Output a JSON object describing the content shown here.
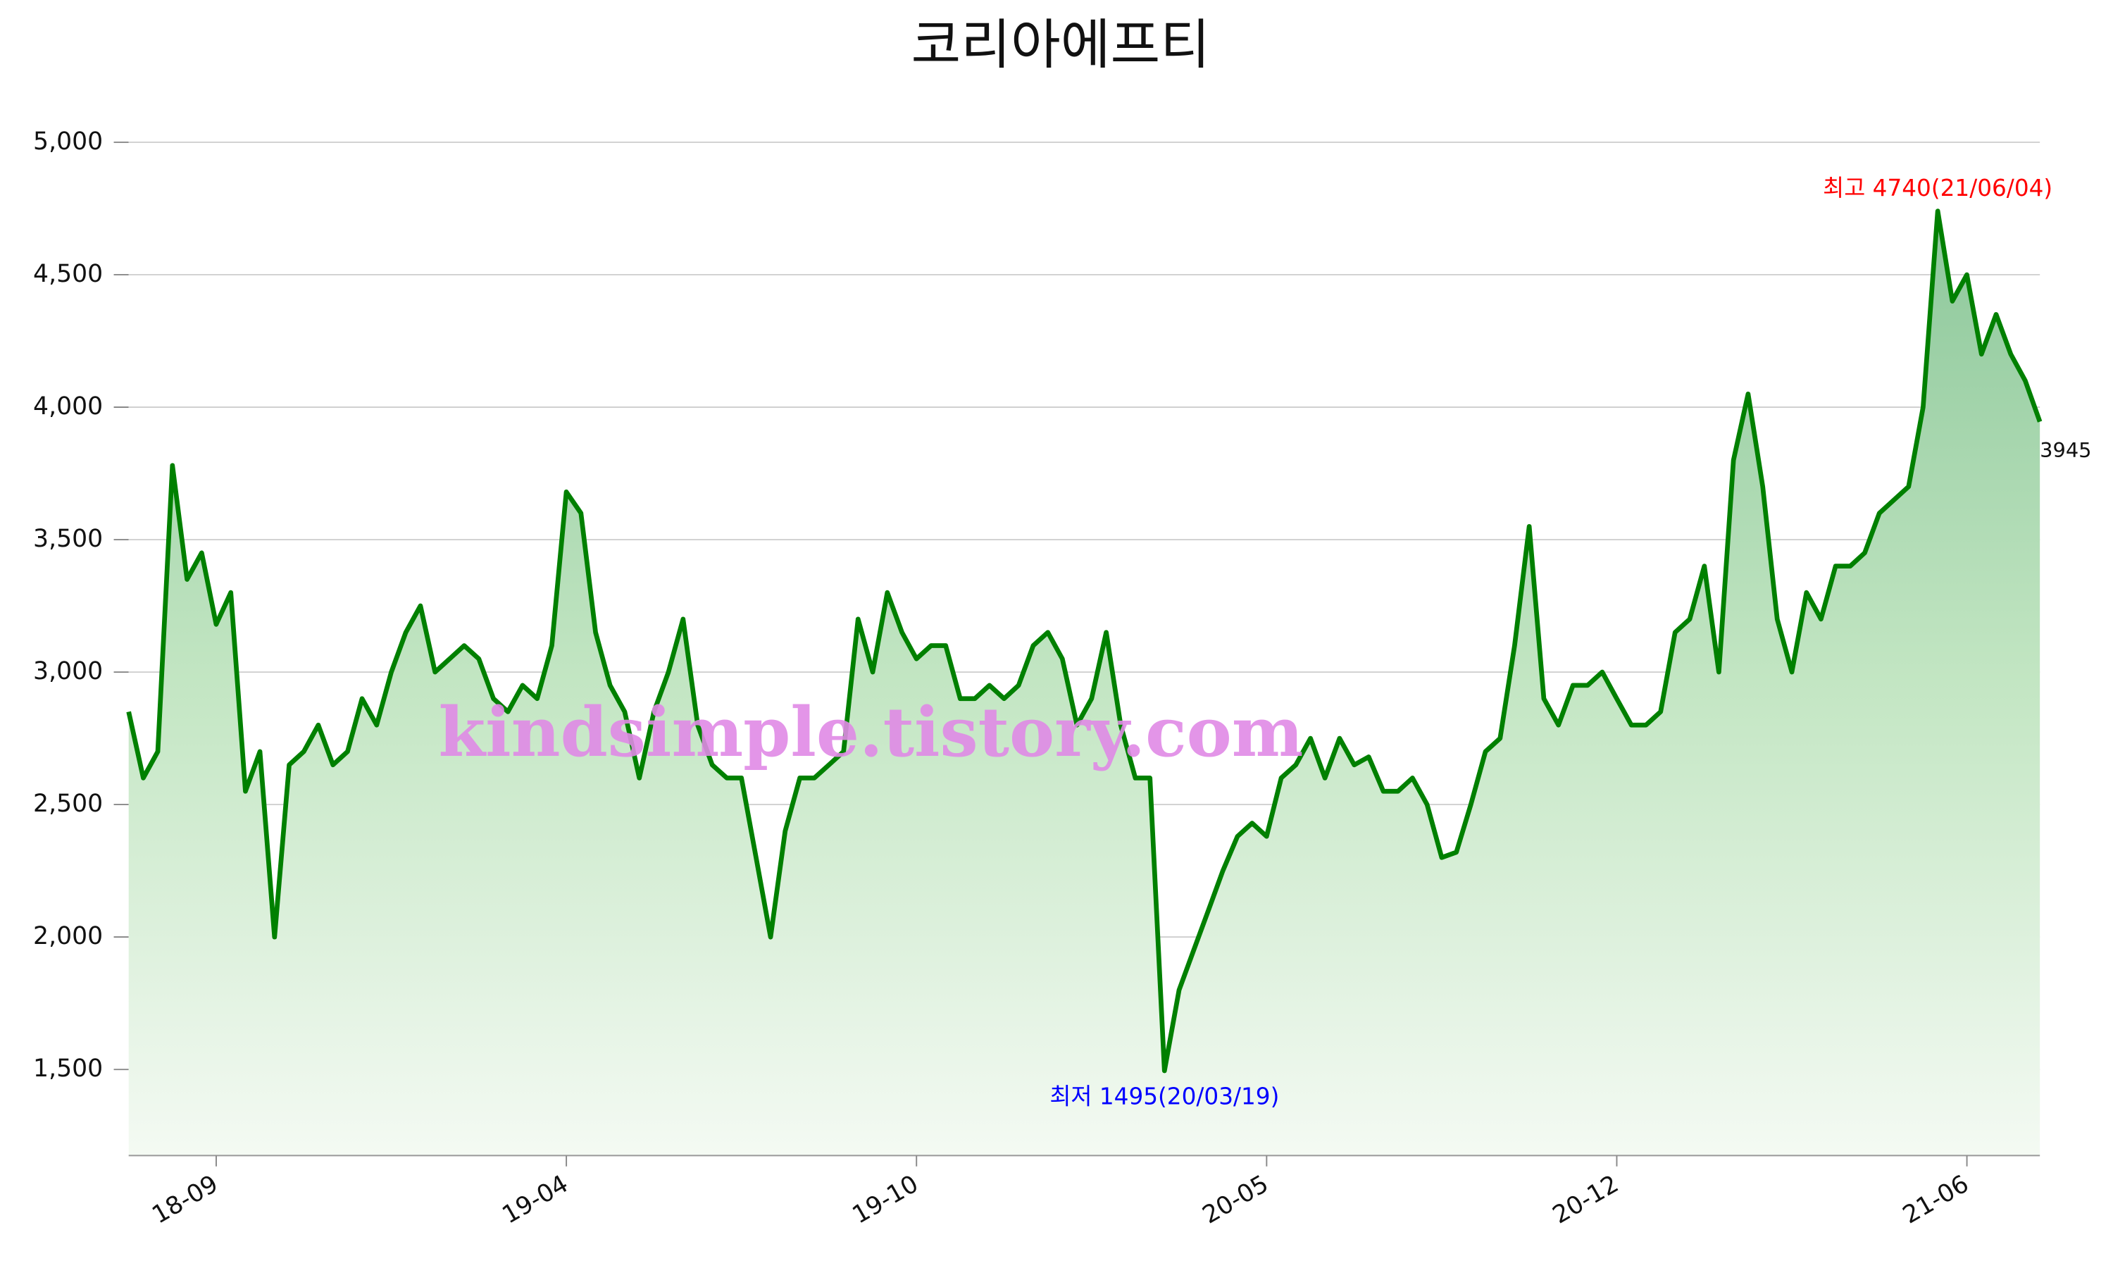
{
  "chart_data": {
    "type": "area-line",
    "title": "코리아에프티",
    "categories": [
      null,
      null,
      null,
      null,
      null,
      null,
      "18-09",
      null,
      null,
      null,
      null,
      null,
      null,
      null,
      null,
      null,
      null,
      null,
      null,
      null,
      null,
      null,
      null,
      null,
      null,
      null,
      null,
      null,
      null,
      null,
      "19-04",
      null,
      null,
      null,
      null,
      null,
      null,
      null,
      null,
      null,
      null,
      null,
      null,
      null,
      null,
      null,
      null,
      null,
      null,
      null,
      null,
      null,
      null,
      null,
      "19-10",
      null,
      null,
      null,
      null,
      null,
      null,
      null,
      null,
      null,
      null,
      null,
      null,
      null,
      null,
      null,
      null,
      null,
      null,
      null,
      null,
      null,
      null,
      null,
      "20-05",
      null,
      null,
      null,
      null,
      null,
      null,
      null,
      null,
      null,
      null,
      null,
      null,
      null,
      null,
      null,
      null,
      null,
      null,
      null,
      null,
      null,
      null,
      null,
      "20-12",
      null,
      null,
      null,
      null,
      null,
      null,
      null,
      null,
      null,
      null,
      null,
      null,
      null,
      null,
      null,
      null,
      null,
      null,
      null,
      null,
      null,
      null,
      null,
      "21-06",
      null,
      null,
      null,
      null,
      null
    ],
    "values": [
      2850,
      2600,
      2700,
      3780,
      3350,
      3450,
      3180,
      3300,
      2550,
      2700,
      2000,
      2650,
      2700,
      2800,
      2650,
      2700,
      2900,
      2800,
      3000,
      3150,
      3250,
      3000,
      3050,
      3100,
      3050,
      2900,
      2850,
      2950,
      2900,
      3100,
      3680,
      3600,
      3150,
      2950,
      2850,
      2600,
      2850,
      3000,
      3200,
      2800,
      2650,
      2600,
      2600,
      2300,
      2000,
      2400,
      2600,
      2600,
      2650,
      2700,
      3200,
      3000,
      3300,
      3150,
      3050,
      3100,
      3100,
      2900,
      2900,
      2950,
      2900,
      2950,
      3100,
      3150,
      3050,
      2800,
      2900,
      3150,
      2800,
      2600,
      2600,
      1495,
      1800,
      1950,
      2100,
      2250,
      2380,
      2430,
      2380,
      2600,
      2650,
      2750,
      2600,
      2750,
      2650,
      2680,
      2550,
      2550,
      2600,
      2500,
      2300,
      2320,
      2500,
      2700,
      2750,
      3100,
      3550,
      2900,
      2800,
      2950,
      2950,
      3000,
      2900,
      2800,
      2800,
      2850,
      3150,
      3200,
      3400,
      3000,
      3800,
      4050,
      3700,
      3200,
      3000,
      3300,
      3200,
      3400,
      3400,
      3450,
      3600,
      3650,
      3700,
      4000,
      4740,
      4400,
      4500,
      4200,
      4350,
      4200,
      4100,
      3945
    ],
    "color": "#008000",
    "ylim": [
      1175,
      5000
    ],
    "yticks": [
      {
        "value": 1500,
        "label": "1,500"
      },
      {
        "value": 2000,
        "label": "2,000"
      },
      {
        "value": 2500,
        "label": "2,500"
      },
      {
        "value": 3000,
        "label": "3,000"
      },
      {
        "value": 3500,
        "label": "3,500"
      },
      {
        "value": 4000,
        "label": "4,000"
      },
      {
        "value": 4500,
        "label": "4,500"
      },
      {
        "value": 5000,
        "label": "5,000"
      }
    ],
    "grid": true,
    "annotations": [
      {
        "text": "최고 4740(21/06/04)",
        "color": "#ff0000"
      },
      {
        "text": "최저 1495(20/03/19)",
        "color": "#0000ff"
      }
    ],
    "watermark": "kindsimple.tistory.com"
  }
}
